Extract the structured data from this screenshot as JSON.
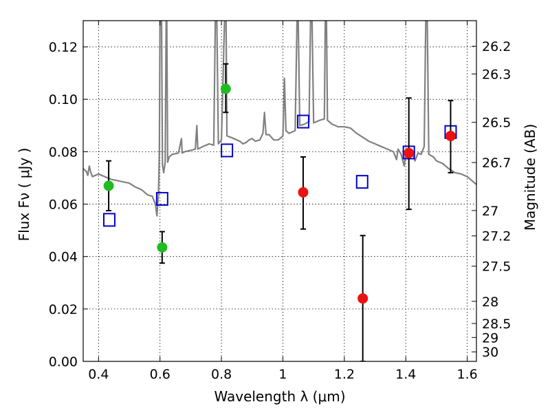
{
  "chart_data": {
    "type": "scatter",
    "title": "",
    "xlabel": "Wavelength  λ (μm)",
    "ylabel": "Flux  Fν  ( μJy )",
    "y2label": "Magnitude (AB)",
    "xlim": [
      0.35,
      1.63
    ],
    "ylim": [
      0.0,
      0.13
    ],
    "grid": true,
    "x_ticks": [
      {
        "value": 0.4,
        "label": "0.4"
      },
      {
        "value": 0.6,
        "label": "0.6"
      },
      {
        "value": 0.8,
        "label": "0.8"
      },
      {
        "value": 1.0,
        "label": "1"
      },
      {
        "value": 1.2,
        "label": "1.2"
      },
      {
        "value": 1.4,
        "label": "1.4"
      },
      {
        "value": 1.6,
        "label": "1.6"
      }
    ],
    "y_ticks": [
      {
        "value": 0.0,
        "label": "0.00"
      },
      {
        "value": 0.02,
        "label": "0.02"
      },
      {
        "value": 0.04,
        "label": "0.04"
      },
      {
        "value": 0.06,
        "label": "0.06"
      },
      {
        "value": 0.08,
        "label": "0.08"
      },
      {
        "value": 0.1,
        "label": "0.10"
      },
      {
        "value": 0.12,
        "label": "0.12"
      }
    ],
    "y2_ticks": [
      {
        "mag": 26.2,
        "label": "26.2"
      },
      {
        "mag": 26.3,
        "label": "26.3"
      },
      {
        "mag": 26.5,
        "label": "26.5"
      },
      {
        "mag": 26.7,
        "label": "26.7"
      },
      {
        "mag": 27.0,
        "label": "27"
      },
      {
        "mag": 27.2,
        "label": "27.2"
      },
      {
        "mag": 27.5,
        "label": "27.5"
      },
      {
        "mag": 28.0,
        "label": "28"
      },
      {
        "mag": 28.5,
        "label": "28.5"
      },
      {
        "mag": 29.0,
        "label": "29"
      },
      {
        "mag": 30.0,
        "label": "30"
      }
    ],
    "series": [
      {
        "kind": "line",
        "color": "#808080",
        "points": [
          [
            0.35,
            0.0735
          ],
          [
            0.36,
            0.0725
          ],
          [
            0.365,
            0.071
          ],
          [
            0.37,
            0.0745
          ],
          [
            0.375,
            0.072
          ],
          [
            0.38,
            0.0705
          ],
          [
            0.4,
            0.0715
          ],
          [
            0.42,
            0.0705
          ],
          [
            0.44,
            0.0695
          ],
          [
            0.46,
            0.069
          ],
          [
            0.48,
            0.0685
          ],
          [
            0.5,
            0.068
          ],
          [
            0.52,
            0.0665
          ],
          [
            0.54,
            0.0655
          ],
          [
            0.56,
            0.0635
          ],
          [
            0.575,
            0.063
          ],
          [
            0.585,
            0.06
          ],
          [
            0.59,
            0.0555
          ],
          [
            0.595,
            0.064
          ],
          [
            0.598,
            0.08
          ],
          [
            0.6,
            0.13
          ],
          [
            0.605,
            0.13
          ],
          [
            0.608,
            0.075
          ],
          [
            0.612,
            0.072
          ],
          [
            0.617,
            0.076
          ],
          [
            0.62,
            0.13
          ],
          [
            0.622,
            0.13
          ],
          [
            0.625,
            0.076
          ],
          [
            0.63,
            0.078
          ],
          [
            0.64,
            0.079
          ],
          [
            0.66,
            0.0795
          ],
          [
            0.67,
            0.085
          ],
          [
            0.672,
            0.0795
          ],
          [
            0.68,
            0.08
          ],
          [
            0.7,
            0.0805
          ],
          [
            0.715,
            0.081
          ],
          [
            0.72,
            0.09
          ],
          [
            0.723,
            0.081
          ],
          [
            0.74,
            0.082
          ],
          [
            0.76,
            0.083
          ],
          [
            0.775,
            0.0825
          ],
          [
            0.78,
            0.13
          ],
          [
            0.785,
            0.13
          ],
          [
            0.79,
            0.083
          ],
          [
            0.8,
            0.0845
          ],
          [
            0.81,
            0.13
          ],
          [
            0.815,
            0.13
          ],
          [
            0.818,
            0.086
          ],
          [
            0.83,
            0.0855
          ],
          [
            0.84,
            0.085
          ],
          [
            0.86,
            0.084
          ],
          [
            0.87,
            0.083
          ],
          [
            0.88,
            0.0835
          ],
          [
            0.89,
            0.0845
          ],
          [
            0.9,
            0.085
          ],
          [
            0.91,
            0.084
          ],
          [
            0.925,
            0.0845
          ],
          [
            0.935,
            0.087
          ],
          [
            0.94,
            0.095
          ],
          [
            0.945,
            0.0865
          ],
          [
            0.955,
            0.0865
          ],
          [
            0.97,
            0.0845
          ],
          [
            0.985,
            0.0845
          ],
          [
            1.0,
            0.086
          ],
          [
            1.005,
            0.108
          ],
          [
            1.01,
            0.088
          ],
          [
            1.02,
            0.087
          ],
          [
            1.04,
            0.088
          ],
          [
            1.046,
            0.13
          ],
          [
            1.05,
            0.13
          ],
          [
            1.055,
            0.09
          ],
          [
            1.07,
            0.0905
          ],
          [
            1.085,
            0.0915
          ],
          [
            1.09,
            0.13
          ],
          [
            1.095,
            0.13
          ],
          [
            1.1,
            0.091
          ],
          [
            1.12,
            0.092
          ],
          [
            1.135,
            0.0925
          ],
          [
            1.138,
            0.13
          ],
          [
            1.142,
            0.13
          ],
          [
            1.145,
            0.092
          ],
          [
            1.16,
            0.0905
          ],
          [
            1.18,
            0.0895
          ],
          [
            1.2,
            0.0895
          ],
          [
            1.22,
            0.089
          ],
          [
            1.24,
            0.087
          ],
          [
            1.26,
            0.0855
          ],
          [
            1.28,
            0.084
          ],
          [
            1.3,
            0.083
          ],
          [
            1.32,
            0.082
          ],
          [
            1.34,
            0.081
          ],
          [
            1.36,
            0.08
          ],
          [
            1.37,
            0.077
          ],
          [
            1.375,
            0.081
          ],
          [
            1.385,
            0.079
          ],
          [
            1.395,
            0.0745
          ],
          [
            1.4,
            0.08
          ],
          [
            1.41,
            0.081
          ],
          [
            1.42,
            0.08
          ],
          [
            1.43,
            0.0765
          ],
          [
            1.44,
            0.0795
          ],
          [
            1.45,
            0.079
          ],
          [
            1.46,
            0.082
          ],
          [
            1.465,
            0.13
          ],
          [
            1.47,
            0.13
          ],
          [
            1.475,
            0.079
          ],
          [
            1.49,
            0.078
          ],
          [
            1.5,
            0.0765
          ],
          [
            1.52,
            0.0755
          ],
          [
            1.54,
            0.0735
          ],
          [
            1.56,
            0.072
          ],
          [
            1.58,
            0.0715
          ],
          [
            1.6,
            0.0705
          ],
          [
            1.62,
            0.0685
          ],
          [
            1.63,
            0.0675
          ]
        ]
      },
      {
        "kind": "open_square",
        "color": "#0000cc",
        "x": [
          0.435,
          0.607,
          0.818,
          1.066,
          1.258,
          1.41,
          1.546
        ],
        "y": [
          0.054,
          0.062,
          0.0805,
          0.0915,
          0.0685,
          0.0797,
          0.0875
        ]
      },
      {
        "kind": "circle_errorbar",
        "color": "#22bb22",
        "x": [
          0.433,
          0.607,
          0.814
        ],
        "y": [
          0.067,
          0.0435,
          0.104
        ],
        "yerr_low": [
          0.0575,
          0.0375,
          0.095
        ],
        "yerr_high": [
          0.0765,
          0.0495,
          0.1135
        ]
      },
      {
        "kind": "circle_errorbar",
        "color": "#ee1111",
        "x": [
          1.066,
          1.26,
          1.41,
          1.546
        ],
        "y": [
          0.0645,
          0.024,
          0.0795,
          0.086
        ],
        "yerr_low": [
          0.0505,
          0.0,
          0.058,
          0.072
        ],
        "yerr_high": [
          0.078,
          0.048,
          0.1005,
          0.0995
        ]
      }
    ]
  }
}
